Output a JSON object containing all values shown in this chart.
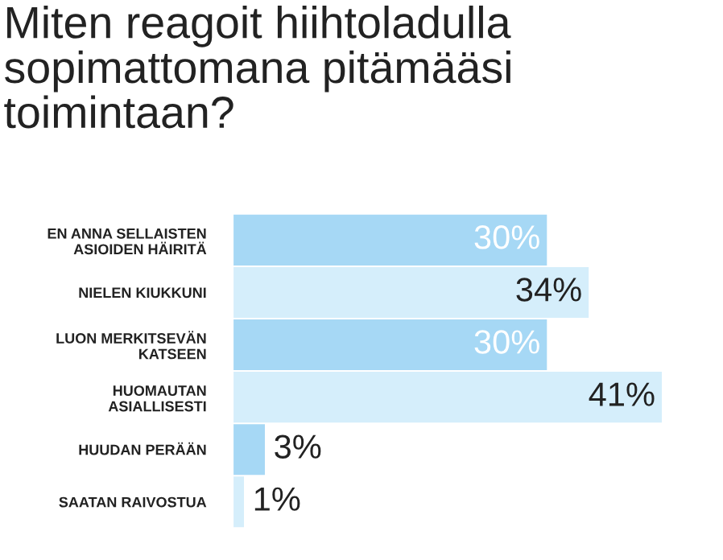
{
  "chart_data": {
    "type": "bar",
    "orientation": "horizontal",
    "title": "Miten reagoit hiihtoladulla\nsopimattomana pitämääsi\ntoimintaan?",
    "categories": [
      "EN ANNA SELLAISTEN\nASIOIDEN HÄIRITÄ",
      "NIELEN KIUKKUNI",
      "LUON MERKITSEVÄN\nKATSEEN",
      "HUOMAUTAN\nASIALLISESTI",
      "HUUDAN PERÄÄN",
      "SAATAN RAIVOSTUA"
    ],
    "values": [
      30,
      34,
      30,
      41,
      3,
      1
    ],
    "colors": [
      "#a6d8f5",
      "#d5eefb",
      "#a6d8f5",
      "#d5eefb",
      "#a6d8f5",
      "#d5eefb"
    ],
    "value_labels": [
      "30%",
      "34%",
      "30%",
      "41%",
      "3%",
      "1%"
    ],
    "grid": false
  }
}
